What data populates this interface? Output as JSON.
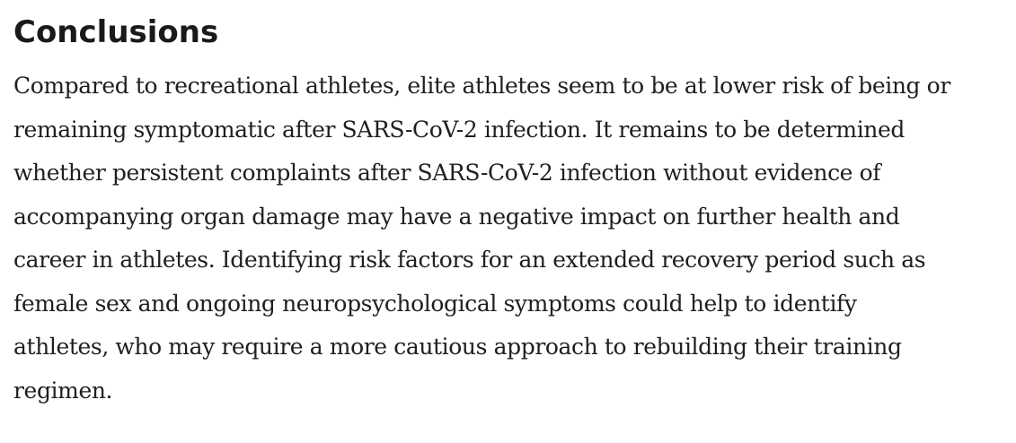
{
  "section": {
    "title": "Conclusions",
    "lines": [
      "Compared to recreational athletes, elite athletes seem to be at lower risk of being or",
      "remaining symptomatic after SARS-CoV-2 infection. It remains to be determined",
      "whether persistent complaints after SARS-CoV-2 infection without evidence of",
      "accompanying organ damage may have a negative impact on further health and",
      "career in athletes. Identifying risk factors for an extended recovery period such as",
      "female sex and ongoing neuropsychological symptoms could help to identify",
      "athletes, who may require a more cautious approach to rebuilding their training",
      "regimen."
    ]
  }
}
